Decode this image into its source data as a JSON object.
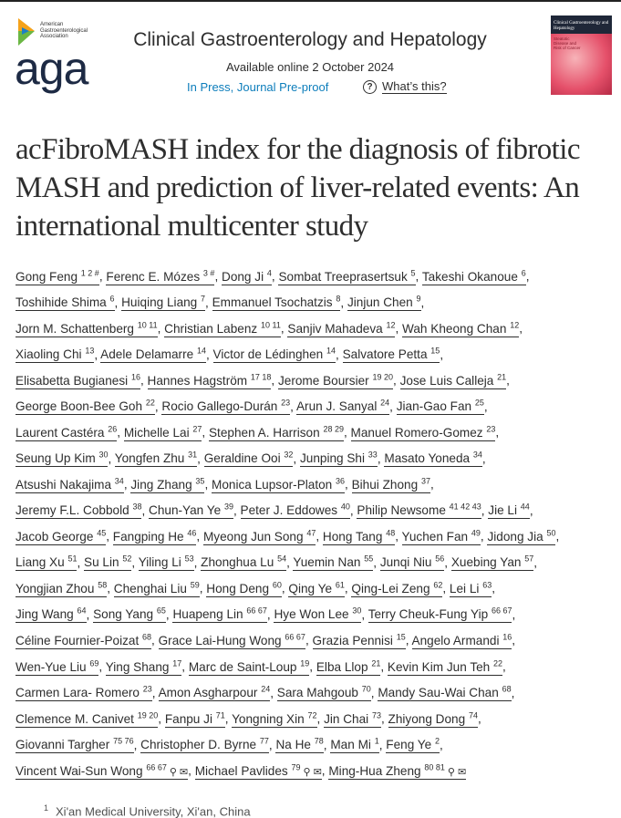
{
  "header": {
    "logo": {
      "text": "aga",
      "association": "American Gastroenterological Association"
    },
    "journal_title": "Clinical Gastroenterology and Hepatology",
    "available": "Available online 2 October 2024",
    "status_link": "In Press, Journal Pre-proof",
    "whats_this": "What’s this?",
    "cover": {
      "title": "Clinical Gastroenterology and Hepatology",
      "subtitle": "Steatotic Disease and Risk of Cancer"
    }
  },
  "article": {
    "title": "acFibroMASH index for the diagnosis of fibrotic MASH and prediction of liver-related events: An international multicenter study"
  },
  "author_lines": [
    [
      {
        "name": "Gong Feng",
        "sup": "1 2 #"
      },
      {
        "name": "Ferenc E. Mózes",
        "sup": "3 #"
      },
      {
        "name": "Dong Ji",
        "sup": "4"
      },
      {
        "name": "Sombat Treeprasertsuk",
        "sup": "5"
      },
      {
        "name": "Takeshi Okanoue",
        "sup": "6"
      }
    ],
    [
      {
        "name": "Toshihide Shima",
        "sup": "6"
      },
      {
        "name": "Huiqing Liang",
        "sup": "7"
      },
      {
        "name": "Emmanuel Tsochatzis",
        "sup": "8"
      },
      {
        "name": "Jinjun Chen",
        "sup": "9"
      }
    ],
    [
      {
        "name": "Jorn M. Schattenberg",
        "sup": "10 11"
      },
      {
        "name": "Christian Labenz",
        "sup": "10 11"
      },
      {
        "name": "Sanjiv Mahadeva",
        "sup": "12"
      },
      {
        "name": "Wah Kheong Chan",
        "sup": "12"
      }
    ],
    [
      {
        "name": "Xiaoling Chi",
        "sup": "13"
      },
      {
        "name": "Adele Delamarre",
        "sup": "14"
      },
      {
        "name": "Victor de Lédinghen",
        "sup": "14"
      },
      {
        "name": "Salvatore Petta",
        "sup": "15"
      }
    ],
    [
      {
        "name": "Elisabetta Bugianesi",
        "sup": "16"
      },
      {
        "name": "Hannes Hagström",
        "sup": "17 18"
      },
      {
        "name": "Jerome Boursier",
        "sup": "19 20"
      },
      {
        "name": "Jose Luis Calleja",
        "sup": "21"
      }
    ],
    [
      {
        "name": "George Boon-Bee Goh",
        "sup": "22"
      },
      {
        "name": "Rocio Gallego-Durán",
        "sup": "23"
      },
      {
        "name": "Arun J. Sanyal",
        "sup": "24"
      },
      {
        "name": "Jian-Gao Fan",
        "sup": "25"
      }
    ],
    [
      {
        "name": "Laurent Castéra",
        "sup": "26"
      },
      {
        "name": "Michelle Lai",
        "sup": "27"
      },
      {
        "name": "Stephen A. Harrison",
        "sup": "28 29"
      },
      {
        "name": "Manuel Romero-Gomez",
        "sup": "23"
      }
    ],
    [
      {
        "name": "Seung Up Kim",
        "sup": "30"
      },
      {
        "name": "Yongfen Zhu",
        "sup": "31"
      },
      {
        "name": "Geraldine Ooi",
        "sup": "32"
      },
      {
        "name": "Junping Shi",
        "sup": "33"
      },
      {
        "name": "Masato Yoneda",
        "sup": "34"
      }
    ],
    [
      {
        "name": "Atsushi Nakajima",
        "sup": "34"
      },
      {
        "name": "Jing Zhang",
        "sup": "35"
      },
      {
        "name": "Monica Lupsor-Platon",
        "sup": "36"
      },
      {
        "name": "Bihui Zhong",
        "sup": "37"
      }
    ],
    [
      {
        "name": "Jeremy F.L. Cobbold",
        "sup": "38"
      },
      {
        "name": "Chun-Yan Ye",
        "sup": "39"
      },
      {
        "name": "Peter J. Eddowes",
        "sup": "40"
      },
      {
        "name": "Philip Newsome",
        "sup": "41 42 43"
      },
      {
        "name": "Jie Li",
        "sup": "44"
      }
    ],
    [
      {
        "name": "Jacob George",
        "sup": "45"
      },
      {
        "name": "Fangping He",
        "sup": "46"
      },
      {
        "name": "Myeong Jun Song",
        "sup": "47"
      },
      {
        "name": "Hong Tang",
        "sup": "48"
      },
      {
        "name": "Yuchen Fan",
        "sup": "49"
      },
      {
        "name": "Jidong Jia",
        "sup": "50"
      }
    ],
    [
      {
        "name": "Liang Xu",
        "sup": "51"
      },
      {
        "name": "Su Lin",
        "sup": "52"
      },
      {
        "name": "Yiling Li",
        "sup": "53"
      },
      {
        "name": "Zhonghua Lu",
        "sup": "54"
      },
      {
        "name": "Yuemin Nan",
        "sup": "55"
      },
      {
        "name": "Junqi Niu",
        "sup": "56"
      },
      {
        "name": "Xuebing Yan",
        "sup": "57"
      }
    ],
    [
      {
        "name": "Yongjian Zhou",
        "sup": "58"
      },
      {
        "name": "Chenghai Liu",
        "sup": "59"
      },
      {
        "name": "Hong Deng",
        "sup": "60"
      },
      {
        "name": "Qing Ye",
        "sup": "61"
      },
      {
        "name": "Qing-Lei Zeng",
        "sup": "62"
      },
      {
        "name": "Lei Li",
        "sup": "63"
      }
    ],
    [
      {
        "name": "Jing Wang",
        "sup": "64"
      },
      {
        "name": "Song Yang",
        "sup": "65"
      },
      {
        "name": "Huapeng Lin",
        "sup": "66 67"
      },
      {
        "name": "Hye Won Lee",
        "sup": "30"
      },
      {
        "name": "Terry Cheuk-Fung Yip",
        "sup": "66 67"
      }
    ],
    [
      {
        "name": "Céline Fournier-Poizat",
        "sup": "68"
      },
      {
        "name": "Grace Lai-Hung Wong",
        "sup": "66 67"
      },
      {
        "name": "Grazia Pennisi",
        "sup": "15"
      },
      {
        "name": "Angelo Armandi",
        "sup": "16"
      }
    ],
    [
      {
        "name": "Wen-Yue Liu",
        "sup": "69"
      },
      {
        "name": "Ying Shang",
        "sup": "17"
      },
      {
        "name": "Marc de Saint-Loup",
        "sup": "19"
      },
      {
        "name": "Elba Llop",
        "sup": "21"
      },
      {
        "name": "Kevin Kim Jun Teh",
        "sup": "22"
      }
    ],
    [
      {
        "name": "Carmen Lara- Romero",
        "sup": "23"
      },
      {
        "name": "Amon Asgharpour",
        "sup": "24"
      },
      {
        "name": "Sara Mahgoub",
        "sup": "70"
      },
      {
        "name": "Mandy Sau-Wai Chan",
        "sup": "68"
      }
    ],
    [
      {
        "name": "Clemence M. Canivet",
        "sup": "19 20"
      },
      {
        "name": "Fanpu Ji",
        "sup": "71"
      },
      {
        "name": "Yongning Xin",
        "sup": "72"
      },
      {
        "name": "Jin Chai",
        "sup": "73"
      },
      {
        "name": "Zhiyong Dong",
        "sup": "74"
      }
    ],
    [
      {
        "name": "Giovanni Targher",
        "sup": "75 76"
      },
      {
        "name": "Christopher D. Byrne",
        "sup": "77"
      },
      {
        "name": "Na He",
        "sup": "78"
      },
      {
        "name": "Man Mi",
        "sup": "1"
      },
      {
        "name": "Feng Ye",
        "sup": "2"
      }
    ],
    [
      {
        "name": "Vincent Wai-Sun Wong",
        "sup": "66 67",
        "icons": [
          "person-icon",
          "envelope-icon"
        ]
      },
      {
        "name": "Michael Pavlides",
        "sup": "79",
        "icons": [
          "person-icon",
          "envelope-icon"
        ]
      },
      {
        "name": "Ming-Hua Zheng",
        "sup": "80 81",
        "icons": [
          "person-icon",
          "envelope-icon"
        ]
      }
    ]
  ],
  "affiliations": [
    {
      "sup": "1",
      "text": "Xi'an Medical University, Xi'an, China"
    }
  ],
  "colors": {
    "link": "#0c7dbb",
    "text": "#2e2e2e"
  }
}
